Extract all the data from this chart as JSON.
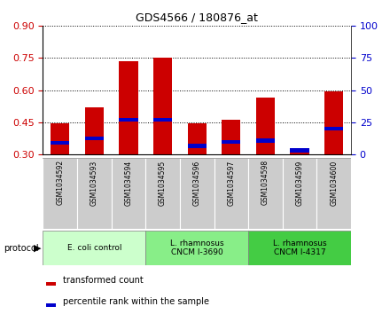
{
  "title": "GDS4566 / 180876_at",
  "samples": [
    "GSM1034592",
    "GSM1034593",
    "GSM1034594",
    "GSM1034595",
    "GSM1034596",
    "GSM1034597",
    "GSM1034598",
    "GSM1034599",
    "GSM1034600"
  ],
  "red_values": [
    0.447,
    0.522,
    0.735,
    0.75,
    0.447,
    0.462,
    0.565,
    0.32,
    0.595
  ],
  "blue_values": [
    0.355,
    0.375,
    0.462,
    0.462,
    0.34,
    0.36,
    0.365,
    0.32,
    0.42
  ],
  "ylim_left": [
    0.3,
    0.9
  ],
  "yticks_left": [
    0.3,
    0.45,
    0.6,
    0.75,
    0.9
  ],
  "yticks_right": [
    0,
    25,
    50,
    75,
    100
  ],
  "left_color": "#cc0000",
  "right_color": "#0000cc",
  "bar_width": 0.55,
  "bar_color_red": "#cc0000",
  "bar_color_blue": "#0000cc",
  "blue_bar_height": 0.018,
  "groups": [
    {
      "label": "E. coli control",
      "start": 0,
      "end": 3,
      "color": "#ccffcc"
    },
    {
      "label": "L. rhamnosus\nCNCM I-3690",
      "start": 3,
      "end": 6,
      "color": "#88ee88"
    },
    {
      "label": "L. rhamnosus\nCNCM I-4317",
      "start": 6,
      "end": 9,
      "color": "#44cc44"
    }
  ],
  "legend_red": "transformed count",
  "legend_blue": "percentile rank within the sample",
  "protocol_label": "protocol",
  "bg_color_samples": "#cccccc",
  "title_fontsize": 9
}
